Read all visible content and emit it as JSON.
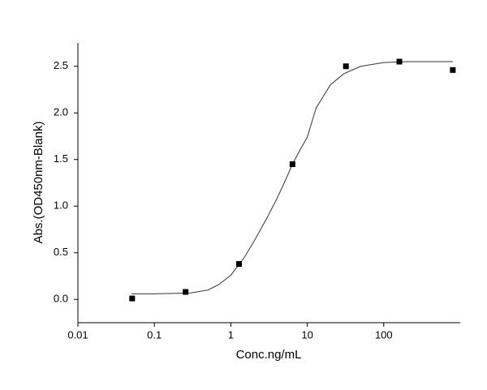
{
  "chart_data": {
    "type": "scatter",
    "x_label": "Conc.ng/mL",
    "y_label": "Abs.(OD450nm-Blank)",
    "x": [
      0.0512,
      0.256,
      1.28,
      6.4,
      32,
      160,
      800
    ],
    "values": [
      0.01,
      0.08,
      0.38,
      1.45,
      2.5,
      2.55,
      2.46
    ],
    "color": "#000000",
    "fit": {
      "color": "#333333",
      "x": [
        0.05,
        0.1,
        0.2,
        0.3,
        0.5,
        0.7,
        1,
        1.5,
        2,
        3,
        4,
        5,
        6.4,
        8,
        10,
        13,
        20,
        30,
        50,
        100,
        200,
        500,
        800
      ],
      "values": [
        0.06,
        0.06,
        0.065,
        0.07,
        0.1,
        0.16,
        0.26,
        0.45,
        0.62,
        0.88,
        1.08,
        1.25,
        1.45,
        1.6,
        1.74,
        2.05,
        2.3,
        2.42,
        2.5,
        2.54,
        2.55,
        2.55,
        2.55
      ]
    },
    "xlog": true,
    "xlim": [
      0.01,
      1000
    ],
    "xticks": [
      0.01,
      0.1,
      1,
      10,
      100
    ],
    "ylim": [
      -0.25,
      2.75
    ],
    "yticks": [
      {
        "value": 0,
        "label": "0.0"
      },
      {
        "value": 0.5,
        "label": "0.5"
      },
      {
        "value": 1,
        "label": "1.0"
      },
      {
        "value": 1.5,
        "label": "1.5"
      },
      {
        "value": 2,
        "label": "2.0"
      },
      {
        "value": 2.5,
        "label": "2.5"
      }
    ]
  }
}
